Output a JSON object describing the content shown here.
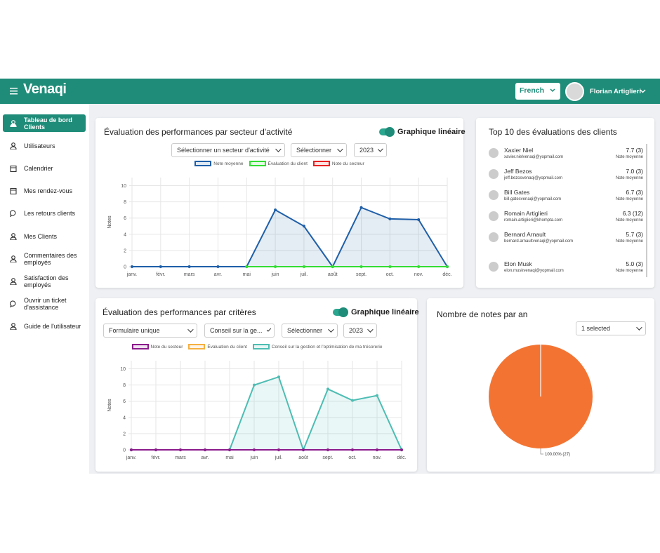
{
  "header": {
    "brand": "Venaqi",
    "language": "French",
    "user": "Florian Artiglieri"
  },
  "sidebar": [
    "Tableau de bord Clients",
    "Utilisateurs",
    "Calendrier",
    "Mes rendez-vous",
    "Les retours clients",
    "Mes Clients",
    "Commentaires des employés",
    "Satisfaction des employés",
    "Ouvrir un ticket d'assistance",
    "Guide de l'utilisateur"
  ],
  "sector_card": {
    "title": "Évaluation des performances par secteur d'activité",
    "toggle": "Graphique linéaire",
    "filters": [
      "Sélectionner un secteur d'activité",
      "Sélectionner",
      "2023"
    ],
    "chart": {
      "type": "line",
      "y_label": "Notes",
      "categories": [
        "janv.",
        "févr.",
        "mars",
        "avr.",
        "mai",
        "juin",
        "juil.",
        "août",
        "sept.",
        "oct.",
        "nov.",
        "déc."
      ],
      "series": [
        {
          "name": "Note moyenne",
          "color": "#1f5fa8",
          "fill": true,
          "values": [
            0,
            0,
            0,
            0,
            0,
            7,
            5,
            0,
            7.3,
            5.9,
            5.8,
            0
          ]
        },
        {
          "name": "Évaluation du client",
          "color": "#33dd33",
          "values": [
            null,
            null,
            null,
            null,
            0,
            0,
            0,
            0,
            0,
            0,
            0,
            0
          ]
        },
        {
          "name": "Note du secteur",
          "color": "#e82020",
          "values": [
            null,
            null,
            null,
            null,
            null,
            null,
            null,
            null,
            null,
            null,
            null,
            null
          ]
        }
      ],
      "ylim": [
        0,
        11
      ],
      "yticks": [
        0,
        2,
        4,
        6,
        8,
        10
      ],
      "grid": true
    }
  },
  "top_clients": {
    "title": "Top 10 des évaluations des clients",
    "clients": [
      {
        "name": "Xaxier Niel",
        "email": "xavier.nielvenaqi@yopmail.com",
        "score": "7.7 (3)",
        "caption": "Note moyenne"
      },
      {
        "name": "Jeff Bezos",
        "email": "jeff.bezosvenaqi@yopmail.com",
        "score": "7.0 (3)",
        "caption": "Note moyenne"
      },
      {
        "name": "Bill Gates",
        "email": "bill.gatesvenaqi@yopmail.com",
        "score": "6.7 (3)",
        "caption": "Note moyenne"
      },
      {
        "name": "Romain Artiglieri",
        "email": "romain.artiglieri@khompta.com",
        "score": "6.3 (12)",
        "caption": "Note moyenne"
      },
      {
        "name": "Bernard Arnault",
        "email": "bernard.arnaultvenaqi@yopmail.com",
        "score": "5.7 (3)",
        "caption": "Note moyenne"
      },
      {
        "name": "Elon Musk",
        "email": "elon.muskvenaqi@yopmail.com",
        "score": "5.0 (3)",
        "caption": "Note moyenne"
      }
    ]
  },
  "criteria_card": {
    "title": "Évaluation des performances par critères",
    "toggle": "Graphique linéaire",
    "filters": [
      "Formulaire unique",
      "Conseil sur la ge...",
      "Sélectionner",
      "2023"
    ],
    "chart": {
      "type": "line",
      "y_label": "Notes",
      "categories": [
        "janv.",
        "févr.",
        "mars",
        "avr.",
        "mai",
        "juin",
        "juil.",
        "août",
        "sept.",
        "oct.",
        "nov.",
        "déc."
      ],
      "series": [
        {
          "name": "Conseil sur la gestion et l'optimisation de ma trésorerie",
          "color": "#4dbdb3",
          "fill": true,
          "values": [
            0,
            0,
            0,
            0,
            0,
            8,
            9,
            0,
            7.5,
            6.1,
            6.7,
            0
          ]
        },
        {
          "name": "Évaluation du client",
          "color": "#f5b041",
          "values": [
            null,
            null,
            null,
            null,
            null,
            null,
            null,
            null,
            null,
            null,
            null,
            null
          ]
        },
        {
          "name": "Note du secteur",
          "color": "#8b1a8b",
          "values": [
            0,
            0,
            0,
            0,
            0,
            0,
            0,
            0,
            0,
            0,
            0,
            0
          ]
        }
      ],
      "legend_order": [
        2,
        1,
        0
      ],
      "ylim": [
        0,
        11
      ],
      "yticks": [
        0,
        2,
        4,
        6,
        8,
        10
      ],
      "grid": true
    }
  },
  "yearly_card": {
    "title": "Nombre de notes par an",
    "filter": "1 selected",
    "chart": {
      "type": "pie",
      "values": [
        100
      ],
      "value_labels": [
        "100.00% (27)"
      ],
      "colors": [
        "#f37432"
      ]
    }
  }
}
